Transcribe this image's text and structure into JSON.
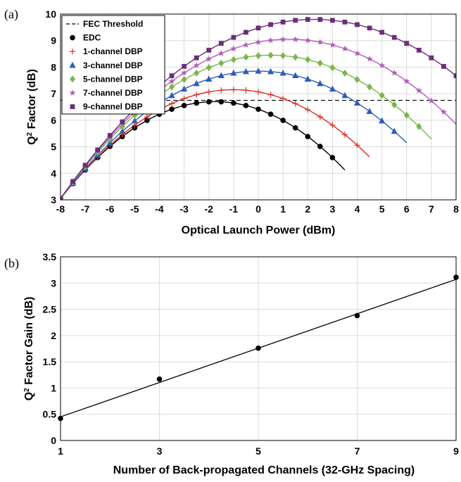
{
  "chart_data": [
    {
      "panel": "(a)",
      "type": "line",
      "ylabel_base": "Q",
      "ylabel_sup": "2",
      "ylabel_rest": " Factor (dB)",
      "xlabel": "Optical Launch Power (dBm)",
      "xlim": [
        -8,
        8
      ],
      "ylim": [
        3,
        10
      ],
      "xticks": [
        -8,
        -7,
        -6,
        -5,
        -4,
        -3,
        -2,
        -1,
        0,
        1,
        2,
        3,
        4,
        5,
        6,
        7,
        8
      ],
      "yticks": [
        3,
        4,
        5,
        6,
        7,
        8,
        9,
        10
      ],
      "grid": true,
      "legend_position": "top-left",
      "threshold": {
        "name": "FEC Threshold",
        "value": 6.75,
        "color": "#000000"
      },
      "series": [
        {
          "name": "EDC",
          "color": "#000000",
          "marker": "circle",
          "peak_x": -1.75,
          "peak_y": 6.7,
          "x": [
            -8,
            -7.5,
            -7,
            -6.5,
            -6,
            -5.5,
            -5,
            -4.5,
            -4,
            -3.5,
            -3,
            -2.5,
            -2,
            -1.5,
            -1,
            -0.5,
            0,
            0.5,
            1,
            1.5,
            2,
            2.5,
            3
          ]
        },
        {
          "name": "1-channel DBP",
          "color": "#d73027",
          "marker": "plus",
          "peak_x": -1.0,
          "peak_y": 7.15,
          "x": [
            -8,
            -7.5,
            -7,
            -6.5,
            -6,
            -5.5,
            -5,
            -4.5,
            -4,
            -3.5,
            -3,
            -2.5,
            -2,
            -1.5,
            -1,
            -0.5,
            0,
            0.5,
            1,
            1.5,
            2,
            2.5,
            3,
            3.5,
            4
          ]
        },
        {
          "name": "3-channel DBP",
          "color": "#2e5cb8",
          "marker": "triangle",
          "peak_x": 0.0,
          "peak_y": 7.85,
          "x": [
            -8,
            -7.5,
            -7,
            -6.5,
            -6,
            -5.5,
            -5,
            -4.5,
            -4,
            -3.5,
            -3,
            -2.5,
            -2,
            -1.5,
            -1,
            -0.5,
            0,
            0.5,
            1,
            1.5,
            2,
            2.5,
            3,
            3.5,
            4,
            4.5,
            5,
            5.5
          ]
        },
        {
          "name": "5-channel DBP",
          "color": "#7ab648",
          "marker": "diamond",
          "peak_x": 0.5,
          "peak_y": 8.45,
          "x": [
            -8,
            -7.5,
            -7,
            -6.5,
            -6,
            -5.5,
            -5,
            -4.5,
            -4,
            -3.5,
            -3,
            -2.5,
            -2,
            -1.5,
            -1,
            -0.5,
            0,
            0.5,
            1,
            1.5,
            2,
            2.5,
            3,
            3.5,
            4,
            4.5,
            5,
            5.5,
            6,
            6.5
          ]
        },
        {
          "name": "7-channel DBP",
          "color": "#b05fb8",
          "marker": "star",
          "peak_x": 1.25,
          "peak_y": 9.05,
          "x": [
            -8,
            -7.5,
            -7,
            -6.5,
            -6,
            -5.5,
            -5,
            -4.5,
            -4,
            -3.5,
            -3,
            -2.5,
            -2,
            -1.5,
            -1,
            -0.5,
            0,
            0.5,
            1,
            1.5,
            2,
            2.5,
            3,
            3.5,
            4,
            4.5,
            5,
            5.5,
            6,
            6.5,
            7,
            7.5
          ]
        },
        {
          "name": "9-channel DBP",
          "color": "#6b2e7a",
          "marker": "square",
          "peak_x": 2.25,
          "peak_y": 9.8,
          "x": [
            -8,
            -7.5,
            -7,
            -6.5,
            -6,
            -5.5,
            -5,
            -4.5,
            -4,
            -3.5,
            -3,
            -2.5,
            -2,
            -1.5,
            -1,
            -0.5,
            0,
            0.5,
            1,
            1.5,
            2,
            2.5,
            3,
            3.5,
            4,
            4.5,
            5,
            5.5,
            6,
            6.5,
            7,
            7.5,
            8
          ]
        }
      ]
    },
    {
      "panel": "(b)",
      "type": "scatter",
      "ylabel_base": "Q",
      "ylabel_sup": "2",
      "ylabel_rest": " Factor Gain (dB)",
      "xlabel": "Number of Back-propagated Channels (32-GHz Spacing)",
      "xlim": [
        1,
        9
      ],
      "ylim": [
        0,
        3.5
      ],
      "xticks": [
        1,
        3,
        5,
        7,
        9
      ],
      "yticks": [
        0,
        0.5,
        1,
        1.5,
        2,
        2.5,
        3,
        3.5
      ],
      "grid": true,
      "x": [
        1,
        3,
        5,
        7,
        9
      ],
      "y": [
        0.42,
        1.17,
        1.76,
        2.38,
        3.11
      ],
      "fit": {
        "x": [
          1,
          9
        ],
        "y": [
          0.45,
          3.07
        ]
      }
    }
  ]
}
